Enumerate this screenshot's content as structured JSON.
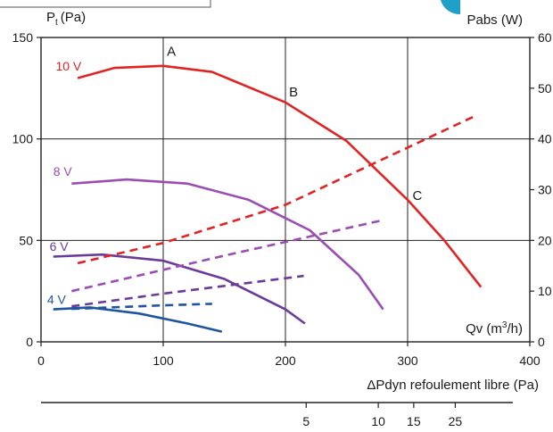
{
  "chart_data": {
    "type": "line",
    "title": "",
    "left_axis": {
      "label": "Pt (Pa)",
      "label_main": "P",
      "label_sub": "t",
      "label_unit": "(Pa)",
      "ylim": [
        0,
        150
      ],
      "ticks": [
        "0",
        "50",
        "100",
        "150"
      ]
    },
    "right_axis": {
      "label": "Pabs (W)",
      "ylim": [
        0,
        60
      ],
      "ticks": [
        "0",
        "10",
        "20",
        "30",
        "40",
        "50",
        "60"
      ]
    },
    "x_axis": {
      "label": "Qv (m³/h)",
      "label_main": "Qv (m",
      "label_sup": "3",
      "label_end": "/h)",
      "xlim": [
        0,
        400
      ],
      "ticks": [
        "0",
        "100",
        "200",
        "300",
        "400"
      ]
    },
    "secondary_axis": {
      "label": "ΔPdyn refoulement libre (Pa)",
      "tick_values": [
        217,
        276,
        305,
        339
      ],
      "ticks": [
        "5",
        "10",
        "15",
        "25"
      ]
    },
    "grid": {
      "x": [
        100,
        200,
        300
      ],
      "y_left": [
        50,
        100
      ]
    },
    "series": [
      {
        "name": "10 V",
        "color": "#e02424",
        "axis": "left",
        "x": [
          30,
          60,
          100,
          140,
          200,
          250,
          300,
          330,
          360
        ],
        "y": [
          130,
          135,
          136,
          133,
          118,
          99,
          70,
          50,
          27
        ]
      },
      {
        "name": "8 V",
        "color": "#9b4db4",
        "axis": "left",
        "x": [
          25,
          70,
          120,
          170,
          220,
          260,
          280
        ],
        "y": [
          78,
          80,
          78,
          70,
          55,
          33,
          16
        ]
      },
      {
        "name": "6 V",
        "color": "#6a3b9a",
        "axis": "left",
        "x": [
          10,
          50,
          100,
          150,
          200,
          216
        ],
        "y": [
          42,
          43,
          40,
          31,
          16,
          9
        ]
      },
      {
        "name": "4 V",
        "color": "#1f55a0",
        "axis": "left",
        "x": [
          10,
          40,
          80,
          120,
          148
        ],
        "y": [
          16,
          17,
          14,
          9,
          5
        ]
      },
      {
        "name": "10 V",
        "color": "#e02424",
        "axis": "right",
        "dash": true,
        "x": [
          30,
          100,
          200,
          355
        ],
        "y": [
          15.5,
          19.5,
          27,
          44.5
        ]
      },
      {
        "name": "8 V",
        "color": "#9b4db4",
        "axis": "right",
        "dash": true,
        "x": [
          25,
          150,
          280
        ],
        "y": [
          10,
          17,
          24
        ]
      },
      {
        "name": "6 V",
        "color": "#6a3b9a",
        "axis": "right",
        "dash": true,
        "x": [
          25,
          100,
          215
        ],
        "y": [
          7,
          9.5,
          13
        ]
      },
      {
        "name": "4 V",
        "color": "#1f55a0",
        "axis": "right",
        "dash": true,
        "x": [
          25,
          100,
          140
        ],
        "y": [
          6.5,
          7.2,
          7.5
        ]
      }
    ],
    "voltage_labels": [
      {
        "text": "10 V",
        "color": "#e02424",
        "x": 12,
        "y": 136
      },
      {
        "text": "8 V",
        "color": "#9b4db4",
        "x": 10,
        "y": 84
      },
      {
        "text": "6 V",
        "color": "#6a3b9a",
        "x": 7,
        "y": 47
      },
      {
        "text": "4 V",
        "color": "#1f55a0",
        "x": 5,
        "y": 21
      }
    ],
    "points": [
      {
        "text": "A",
        "x": 103,
        "y": 141
      },
      {
        "text": "B",
        "x": 203,
        "y": 121
      },
      {
        "text": "C",
        "x": 304,
        "y": 70
      }
    ]
  }
}
